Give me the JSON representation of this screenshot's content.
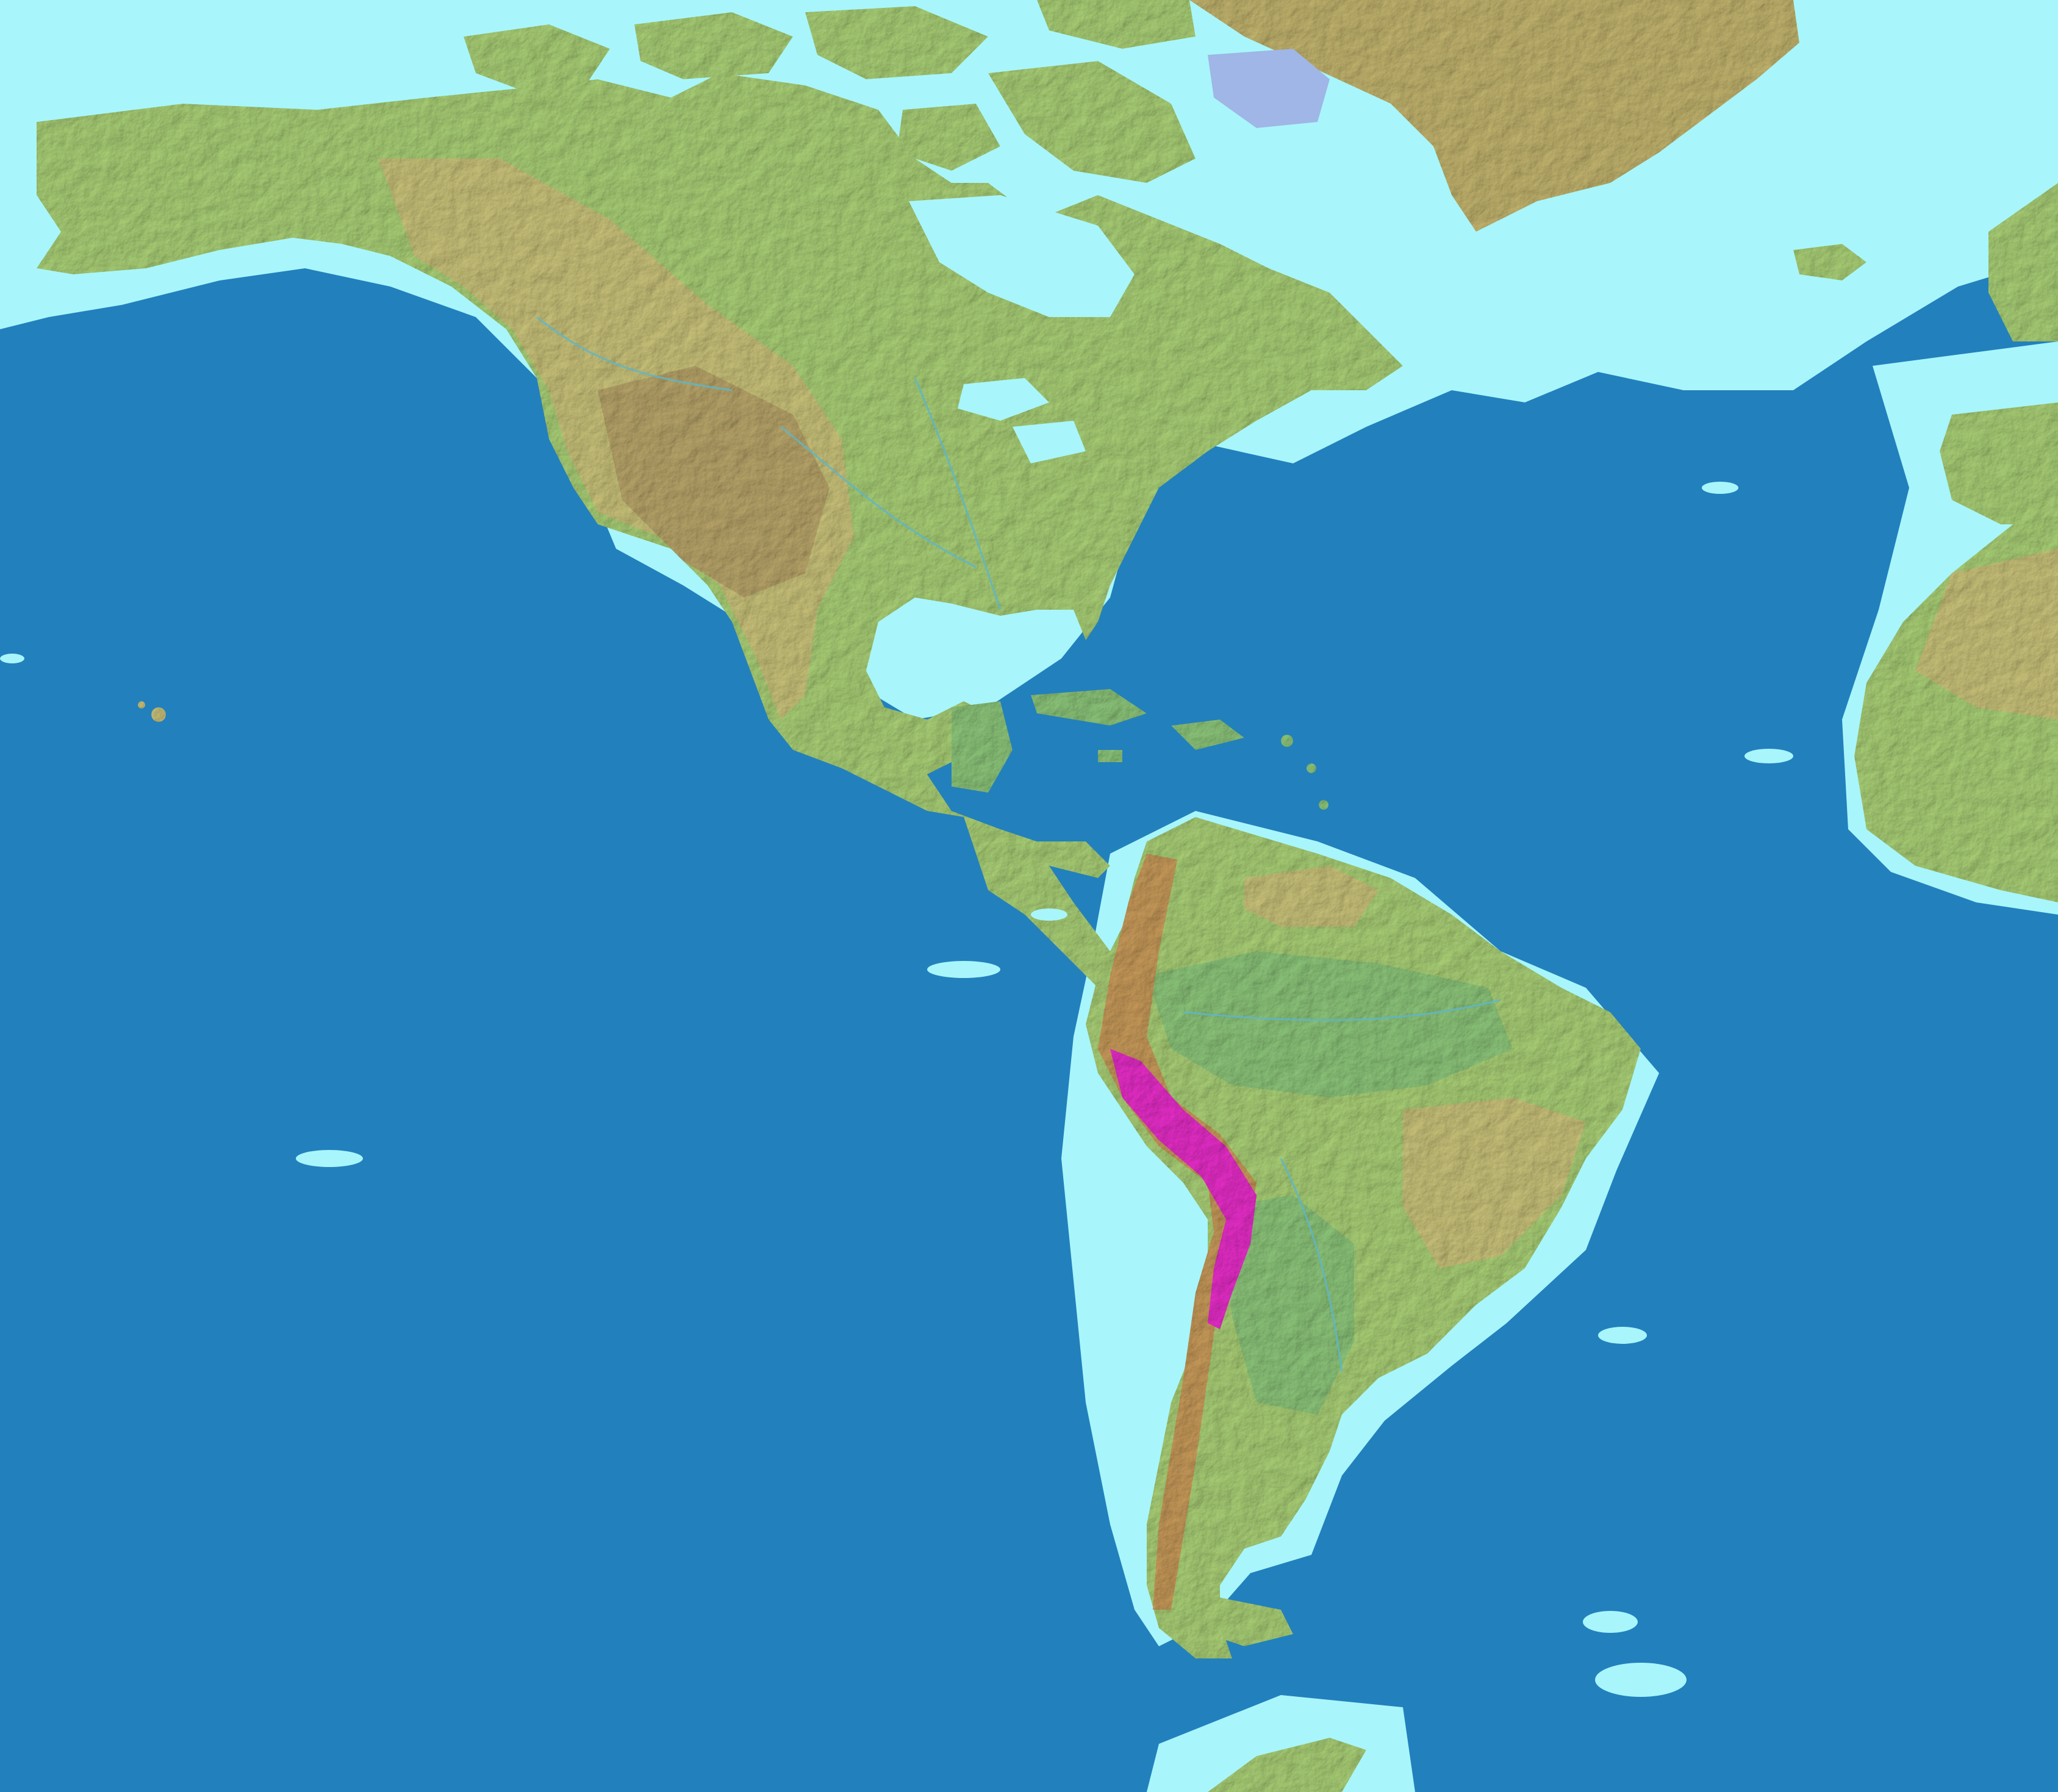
{
  "map": {
    "kind": "physical-relief",
    "projection": "equirectangular",
    "region": "Americas",
    "lon_range": [
      -175,
      -5
    ],
    "lat_range": [
      -65,
      84
    ],
    "labels": [],
    "colors": {
      "ocean": "#2280bd",
      "shelf": "#a8f6fb",
      "lowland": "#8cc57a",
      "plain": "#a9cf76",
      "upland": "#c9c27a",
      "plateau": "#b8a56a",
      "highland": "#c79a5a",
      "peak": "#e62ec8",
      "ice": "#c2b46e",
      "ice_shelf": "#9fb6e6",
      "rivers": "#5fb6c8"
    }
  }
}
